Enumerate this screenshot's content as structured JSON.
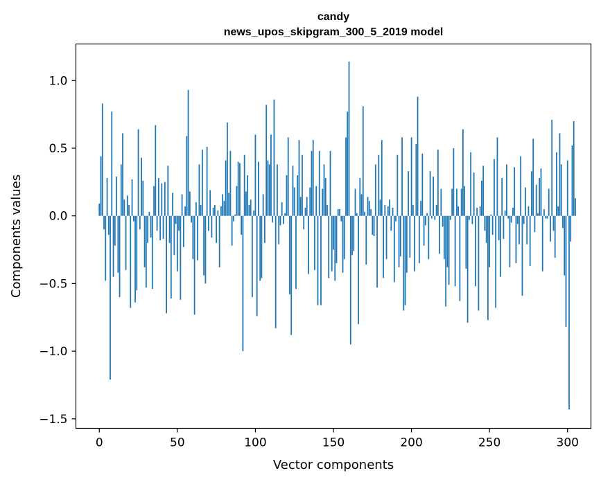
{
  "chart_data": {
    "type": "bar",
    "title": "candy",
    "subtitle": "news_upos_skipgram_300_5_2019 model",
    "xlabel": "Vector components",
    "ylabel": "Components values",
    "xlim": [
      -15,
      315
    ],
    "ylim": [
      -1.57,
      1.27
    ],
    "xticks": [
      0,
      50,
      100,
      150,
      200,
      250,
      300
    ],
    "yticks": [
      -1.5,
      -1.0,
      -0.5,
      0.0,
      0.5,
      1.0
    ],
    "ytick_labels": [
      "−1.5",
      "−1.0",
      "−0.5",
      "0.0",
      "0.5",
      "1.0"
    ],
    "grid": false,
    "bar_color": "#1f77b4",
    "values": [
      0.09,
      0.44,
      0.83,
      -0.1,
      -0.48,
      0.28,
      -0.14,
      -1.21,
      0.77,
      -0.45,
      -0.22,
      0.29,
      -0.42,
      -0.6,
      0.38,
      0.61,
      0.12,
      -0.4,
      0.15,
      0.08,
      -0.68,
      0.27,
      -0.04,
      -0.64,
      -0.55,
      0.64,
      -0.1,
      0.43,
      0.26,
      -0.38,
      -0.53,
      -0.2,
      0.03,
      -0.16,
      -0.54,
      0.22,
      0.67,
      -0.11,
      0.28,
      -0.18,
      0.24,
      -0.17,
      0.25,
      -0.72,
      0.37,
      -0.2,
      -0.61,
      0.17,
      -0.29,
      -0.06,
      -0.41,
      -0.11,
      -0.62,
      0.16,
      -0.23,
      0.07,
      0.59,
      0.93,
      0.18,
      -0.05,
      -0.32,
      -0.73,
      0.1,
      -0.33,
      0.38,
      0.08,
      0.49,
      -0.44,
      -0.5,
      0.51,
      -0.11,
      0.19,
      -0.16,
      0.06,
      0.08,
      -0.2,
      0.04,
      -0.38,
      0.07,
      0.16,
      0.11,
      0.41,
      0.69,
      0.17,
      0.48,
      -0.22,
      -0.04,
      0.01,
      0.22,
      0.4,
      0.39,
      -0.14,
      -1.0,
      0.45,
      0.18,
      0.3,
      0.08,
      0.12,
      -0.6,
      0.04,
      0.6,
      -0.74,
      0.4,
      -0.48,
      -0.46,
      0.16,
      -0.2,
      0.82,
      0.41,
      0.38,
      0.6,
      -0.05,
      0.86,
      -0.83,
      0.38,
      -0.21,
      -0.07,
      0.1,
      -0.06,
      0.02,
      0.3,
      0.58,
      -0.58,
      -0.88,
      0.37,
      0.21,
      -0.54,
      0.3,
      0.56,
      0.14,
      0.45,
      -0.1,
      0.06,
      0.14,
      -0.43,
      0.21,
      0.48,
      0.56,
      -0.4,
      0.22,
      -0.66,
      0.48,
      -0.66,
      0.2,
      0.38,
      0.28,
      0.08,
      -0.46,
      0.48,
      -0.41,
      -0.25,
      -0.48,
      -0.35,
      0.05,
      0.05,
      -0.04,
      -0.42,
      -0.32,
      0.58,
      0.77,
      1.14,
      -0.95,
      -0.29,
      -0.26,
      0.2,
      0.02,
      -0.8,
      0.28,
      0.16,
      0.81,
      0.03,
      -0.36,
      0.14,
      0.11,
      0.05,
      -0.14,
      -0.15,
      0.38,
      -0.53,
      0.45,
      0.12,
      0.56,
      -0.46,
      0.08,
      -0.32,
      0.07,
      0.12,
      -0.11,
      0.06,
      -0.49,
      -0.04,
      0.45,
      -0.38,
      -0.3,
      0.58,
      -0.7,
      -0.66,
      -0.42,
      0.33,
      -0.31,
      0.58,
      0.08,
      -0.41,
      0.53,
      0.88,
      -0.35,
      0.11,
      0.46,
      -0.22,
      -0.07,
      0.02,
      -0.32,
      0.33,
      -0.02,
      0.29,
      -0.03,
      0.08,
      0.49,
      -0.28,
      0.2,
      -0.08,
      -0.32,
      -0.67,
      -0.38,
      -0.51,
      -0.03,
      0.2,
      0.5,
      -0.52,
      0.2,
      0.07,
      -0.63,
      0.2,
      0.64,
      0.22,
      -0.39,
      -0.79,
      -0.03,
      0.47,
      -0.06,
      0.32,
      -0.52,
      0.06,
      -0.7,
      0.07,
      0.26,
      0.37,
      -0.11,
      -0.2,
      -0.77,
      -0.38,
      0.01,
      -0.14,
      0.42,
      -0.68,
      0.58,
      -0.18,
      -0.45,
      0.28,
      -0.17,
      0.04,
      0.38,
      -0.02,
      -0.38,
      -0.05,
      0.06,
      0.36,
      -0.35,
      -0.06,
      -0.21,
      0.44,
      -0.59,
      -0.06,
      0.21,
      -0.21,
      0.07,
      -0.37,
      0.33,
      0.57,
      -0.12,
      0.23,
      0.02,
      0.28,
      0.35,
      -0.41,
      0.05,
      -0.02,
      -0.02,
      0.2,
      -0.19,
      0.71,
      -0.11,
      -0.31,
      0.47,
      0.07,
      0.61,
      0.38,
      -0.09,
      -0.44,
      -0.82,
      0.41,
      -1.43,
      -0.19,
      0.52,
      0.7,
      0.13
    ]
  }
}
